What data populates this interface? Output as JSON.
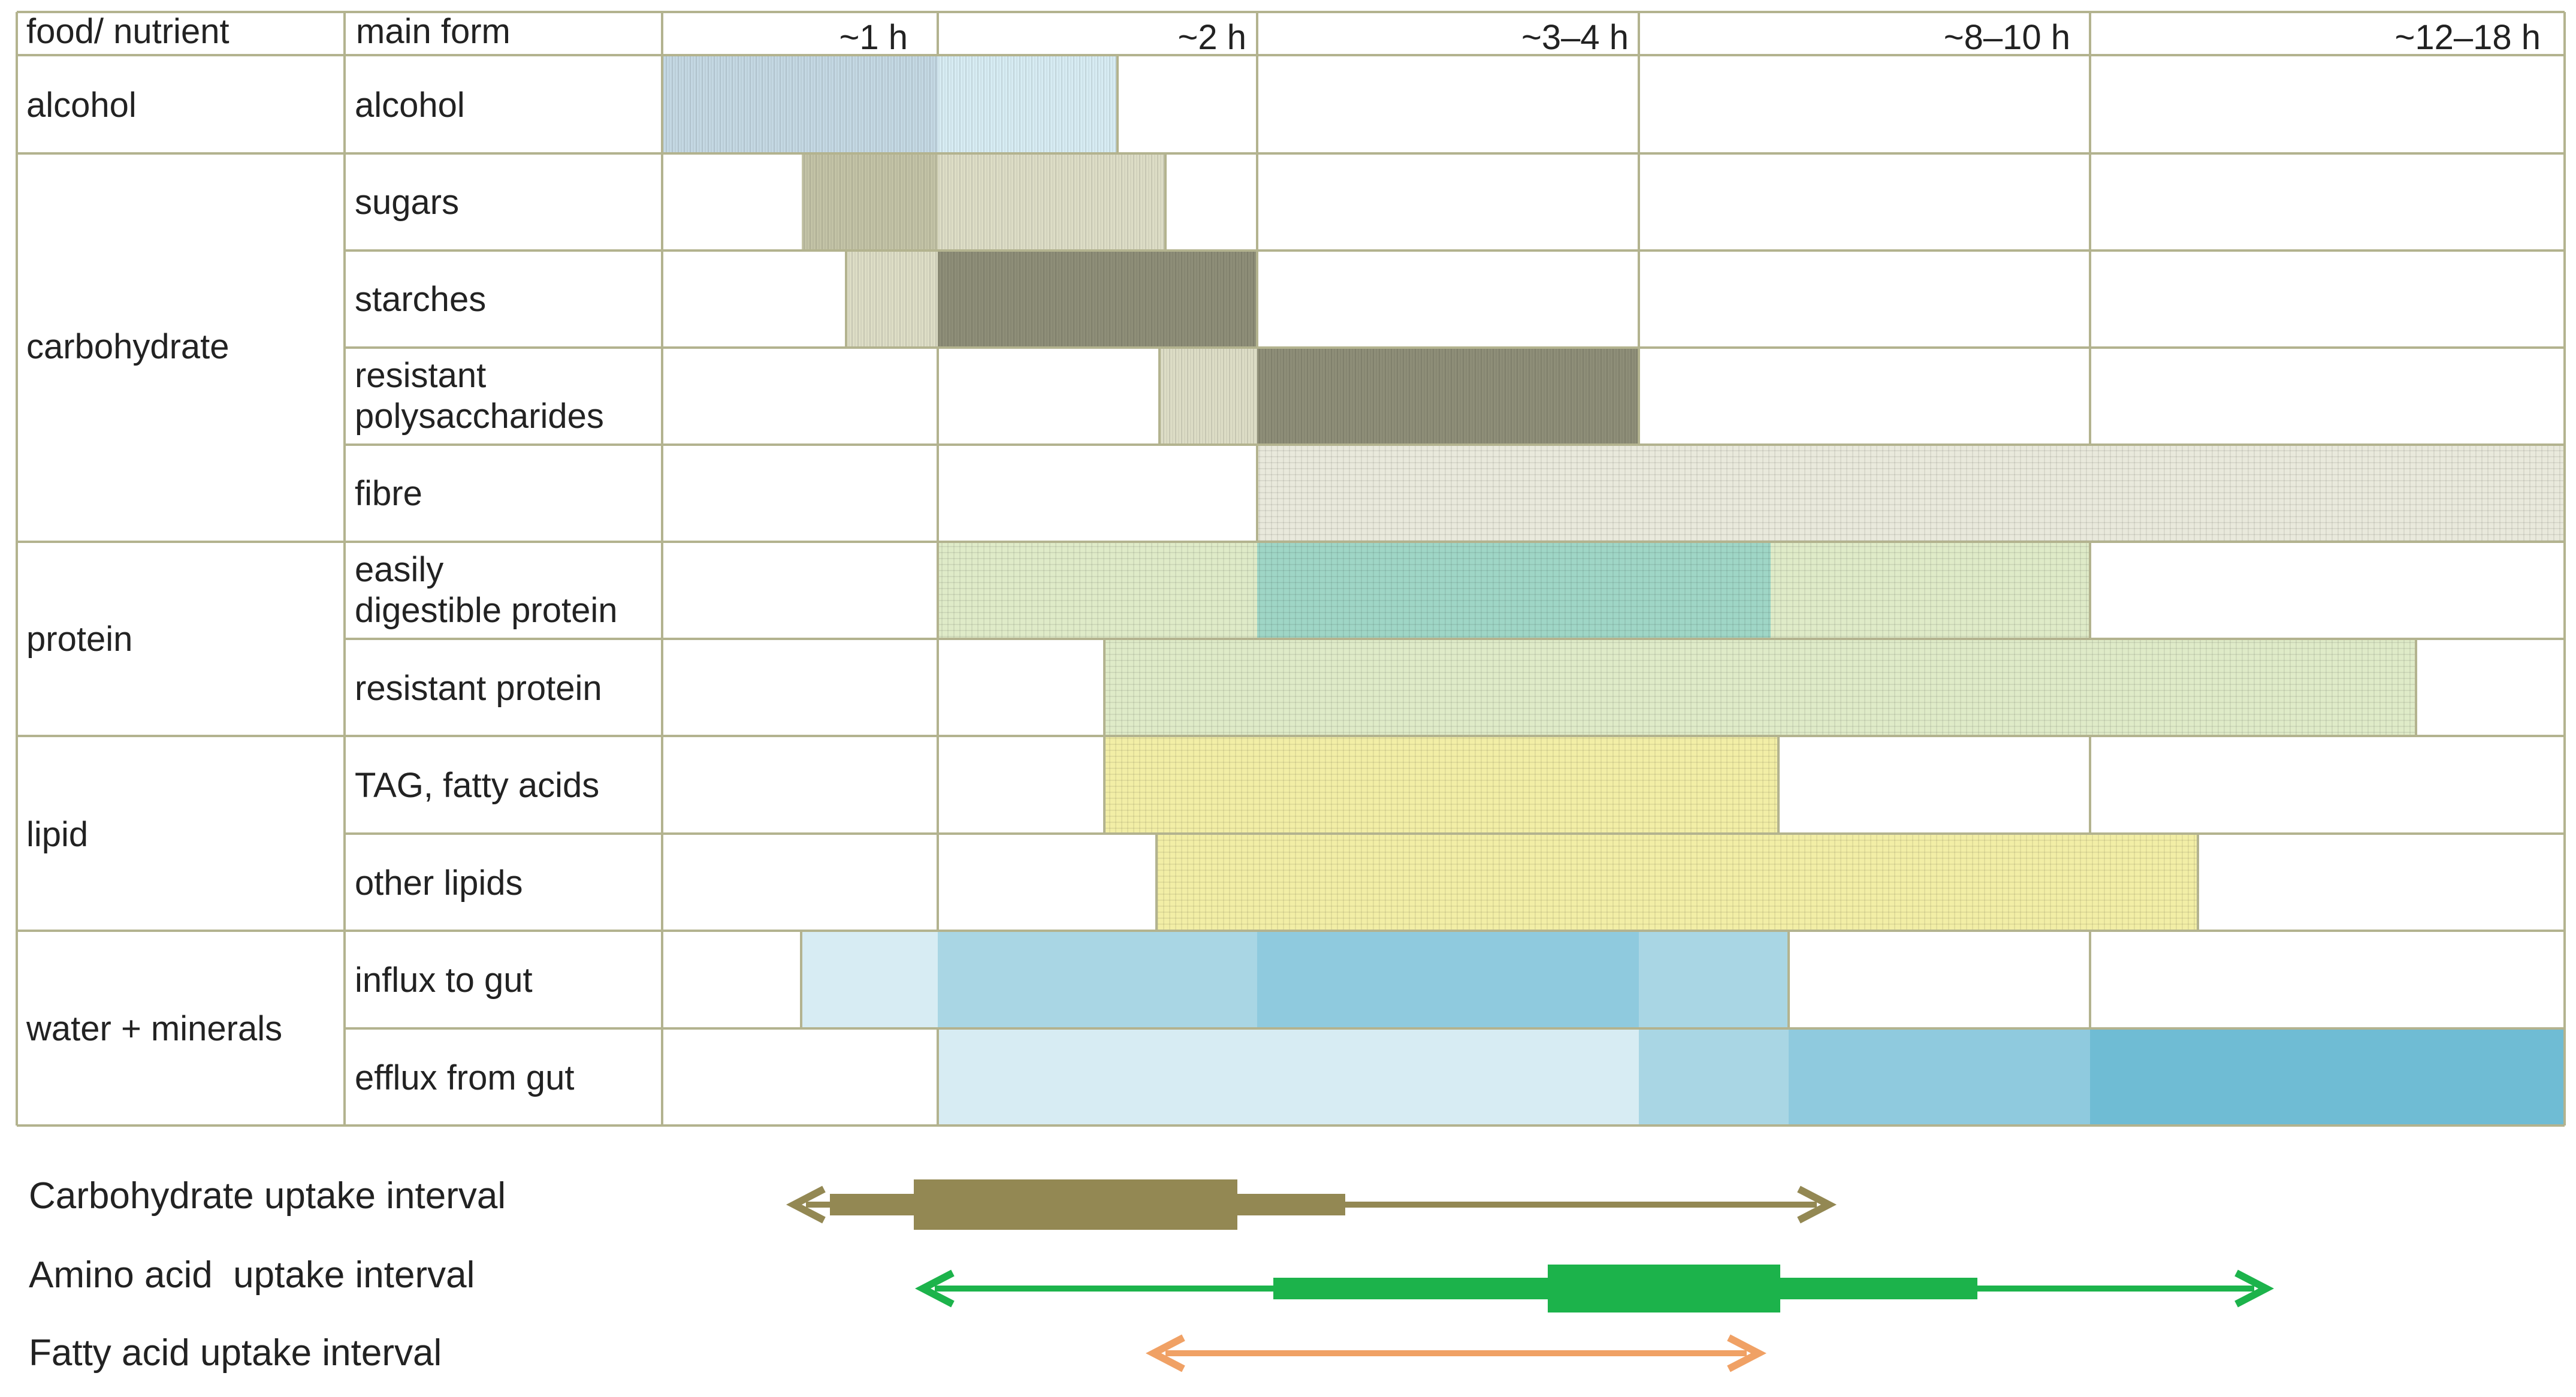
{
  "header": {
    "food_nutrient": "food/ nutrient",
    "main_form": "main form",
    "times": [
      "~1 h",
      "~2 h",
      "~3–4 h",
      "~8–10 h",
      "~12–18 h"
    ]
  },
  "groups": [
    {
      "label": "alcohol",
      "rows": [
        "alcohol"
      ]
    },
    {
      "label": "carbohydrate",
      "rows": [
        "sugars",
        "starches",
        "resistant polysaccharides",
        "fibre"
      ]
    },
    {
      "label": "protein",
      "rows": [
        "easily digestible protein",
        "resistant protein"
      ]
    },
    {
      "label": "lipid",
      "rows": [
        "TAG, fatty acids",
        "other lipids"
      ]
    },
    {
      "label": "water + minerals",
      "rows": [
        "influx to gut",
        "efflux from gut"
      ]
    }
  ],
  "row_labels": [
    [
      "alcohol"
    ],
    [
      "sugars"
    ],
    [
      "starches"
    ],
    [
      "resistant",
      "polysaccharides"
    ],
    [
      "fibre"
    ],
    [
      "easily",
      "digestible protein"
    ],
    [
      "resistant protein"
    ],
    [
      "TAG, fatty acids"
    ],
    [
      "other lipids"
    ],
    [
      "influx to gut"
    ],
    [
      "efflux from gut"
    ]
  ],
  "colors": {
    "grid": "#b3b38f",
    "alcohol": "#c4d8e3",
    "carb_light": "#ddddc6",
    "carb_mid": "#c3c3a6",
    "carb_dark": "#8e8e78",
    "fibre": "#e9e9dc",
    "protein_light": "#dfebc8",
    "protein_dark": "#9fd6c6",
    "lipid": "#f2eea6",
    "water_1": "#d7ecf3",
    "water_2": "#a9d6e4",
    "water_3": "#8fcade",
    "water_4": "#6fbcd4",
    "carb_arrow": "#938853",
    "amino_arrow": "#1cb34b",
    "fatty_arrow": "#f0a165"
  },
  "intervals": [
    {
      "label": "Carbohydrate uptake interval",
      "color_key": "carb_arrow"
    },
    {
      "label": "Amino acid  uptake interval",
      "color_key": "amino_arrow"
    },
    {
      "label": "Fatty acid uptake interval",
      "color_key": "fatty_arrow"
    }
  ]
}
